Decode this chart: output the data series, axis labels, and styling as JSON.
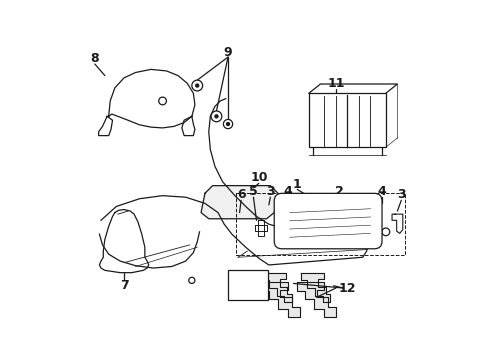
{
  "bg_color": "#ffffff",
  "line_color": "#1a1a1a",
  "fig_width": 4.9,
  "fig_height": 3.6,
  "dpi": 100,
  "label_fontsize": 9,
  "lw": 0.9
}
